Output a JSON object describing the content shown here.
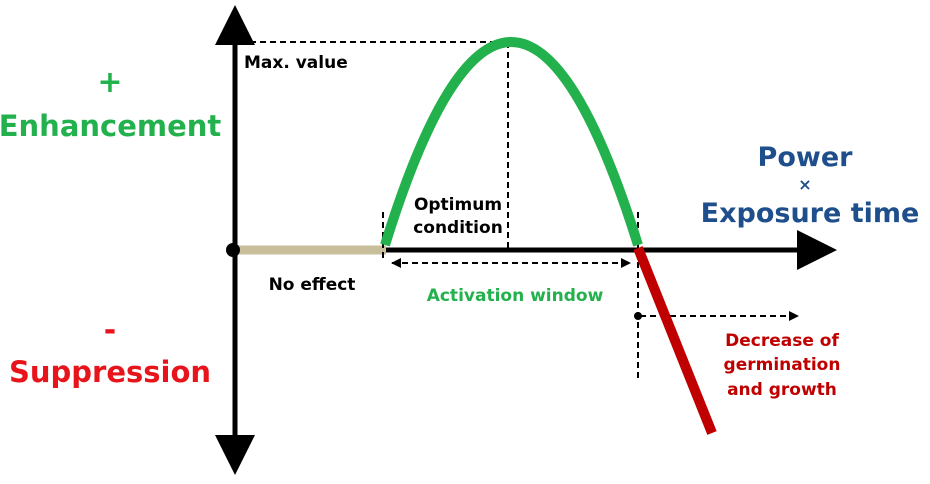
{
  "enhancement": {
    "sign": "+",
    "label": "Enhancement"
  },
  "suppression": {
    "sign": "-",
    "label": "Suppression"
  },
  "max_value": "Max. value",
  "optimum_condition": [
    "Optimum",
    "condition"
  ],
  "no_effect": "No effect",
  "activation_window": "Activation window",
  "x_axis_label": [
    "Power",
    "×",
    "Exposure time"
  ],
  "decrease": [
    "Decrease of",
    "germination",
    "and growth"
  ]
}
